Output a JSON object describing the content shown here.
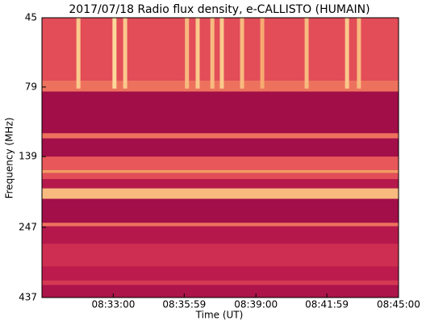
{
  "chart_data": {
    "type": "heatmap",
    "title": "2017/07/18  Radio flux density, e-CALLISTO (HUMAIN)",
    "x_label": "Time (UT)",
    "y_label": "Frequency (MHz)",
    "xlim": [
      "08:30:00",
      "08:45:00"
    ],
    "xticks": [
      "08:33:00",
      "08:35:59",
      "08:39:00",
      "08:41:59",
      "08:45:00"
    ],
    "ylim": [
      437,
      45
    ],
    "yticks": [
      45,
      79,
      139,
      247,
      437
    ],
    "log_y": true,
    "colormap": [
      "#990a47",
      "#c8234f",
      "#e8585a",
      "#f59a63",
      "#fde9a8"
    ],
    "bands": [
      {
        "freq": [
          45,
          75
        ],
        "level": 0.45
      },
      {
        "freq": [
          75,
          82
        ],
        "level": 0.6
      },
      {
        "freq": [
          82,
          115
        ],
        "level": 0.04
      },
      {
        "freq": [
          115,
          120
        ],
        "level": 0.6
      },
      {
        "freq": [
          120,
          139
        ],
        "level": 0.05
      },
      {
        "freq": [
          139,
          155
        ],
        "level": 0.5
      },
      {
        "freq": [
          155,
          159
        ],
        "level": 0.75
      },
      {
        "freq": [
          159,
          167
        ],
        "level": 0.45
      },
      {
        "freq": [
          167,
          180
        ],
        "level": 0.15
      },
      {
        "freq": [
          180,
          196
        ],
        "level": 0.85
      },
      {
        "freq": [
          196,
          238
        ],
        "level": 0.05
      },
      {
        "freq": [
          238,
          245
        ],
        "level": 0.6
      },
      {
        "freq": [
          245,
          282
        ],
        "level": 0.15
      },
      {
        "freq": [
          282,
          340
        ],
        "level": 0.3
      },
      {
        "freq": [
          340,
          380
        ],
        "level": 0.18
      },
      {
        "freq": [
          380,
          395
        ],
        "level": 0.35
      },
      {
        "freq": [
          395,
          437
        ],
        "level": 0.1
      }
    ],
    "burst_freq": [
      45,
      80
    ],
    "bursts": [
      {
        "time": "08:31:32",
        "level": 0.9
      },
      {
        "time": "08:33:03",
        "level": 0.95
      },
      {
        "time": "08:33:30",
        "level": 0.9
      },
      {
        "time": "08:36:06",
        "level": 0.85
      },
      {
        "time": "08:36:33",
        "level": 0.9
      },
      {
        "time": "08:37:10",
        "level": 0.85
      },
      {
        "time": "08:37:34",
        "level": 0.9
      },
      {
        "time": "08:38:25",
        "level": 0.85
      },
      {
        "time": "08:39:16",
        "level": 0.8
      },
      {
        "time": "08:41:08",
        "level": 0.85
      },
      {
        "time": "08:42:50",
        "level": 0.9
      },
      {
        "time": "08:43:20",
        "level": 0.85
      }
    ]
  }
}
